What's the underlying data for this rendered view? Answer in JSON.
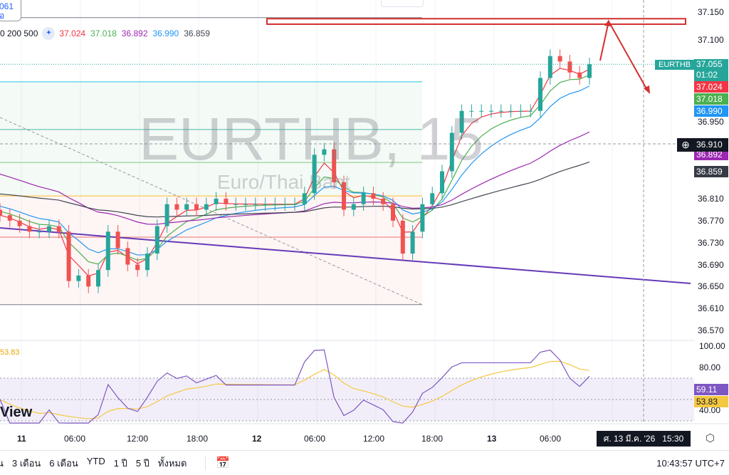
{
  "symbol_box": {
    "value": "061",
    "sub": "อ"
  },
  "legend": {
    "periods": "0 200 500",
    "values": [
      {
        "v": "37.024",
        "c": "#f23645"
      },
      {
        "v": "37.018",
        "c": "#4caf50"
      },
      {
        "v": "36.892",
        "c": "#9c27b0"
      },
      {
        "v": "36.990",
        "c": "#2196f3"
      },
      {
        "v": "36.859",
        "c": "#434651"
      }
    ]
  },
  "watermark": {
    "title": "EURTHB, 15",
    "subtitle": "Euro/Thai Baht"
  },
  "logo_text": "View",
  "price_labels": {
    "symbol": "EURTHB",
    "last": "37.055",
    "countdown": "01:02",
    "ema1": "37.024",
    "ema2": "37.018",
    "ema3": "36.990",
    "crosshair": "36.910",
    "ema4": "36.892",
    "ema5": "36.859"
  },
  "rsi_labels": {
    "rsi": "59.11",
    "ma": "53.83",
    "left_value": "53.83"
  },
  "time_axis": {
    "labels": [
      "11",
      "06:00",
      "12:00",
      "18:00",
      "12",
      "06:00",
      "12:00",
      "18:00",
      "13",
      "06:00"
    ],
    "crosshair": "ศ. 13 มี.ค. '26   15:30"
  },
  "bottom_bar": {
    "ranges": [
      "น",
      "3 เดือน",
      "6 เดือน",
      "YTD",
      "1 ปี",
      "5 ปี",
      "ทั้งหมด"
    ],
    "clock": "10:43:57 UTC+7"
  },
  "colors": {
    "up": "#26a69a",
    "down": "#ef5350",
    "rsi": "#7e57c2",
    "rsi_ma": "#f5c842",
    "annotation": "#d32f2f"
  },
  "chart_data": {
    "type": "candlestick",
    "interval": "15",
    "price_ticks": [
      "37.150",
      "37.100",
      "36.950",
      "36.810",
      "36.770",
      "36.730",
      "36.690",
      "36.650",
      "36.610",
      "36.570"
    ],
    "ylim": [
      36.57,
      37.15
    ],
    "rsi_ticks": [
      "100.00",
      "80.00",
      "40.00"
    ],
    "rsi_ylim": [
      40,
      100
    ],
    "hourly_closes": [
      36.78,
      36.77,
      36.76,
      36.75,
      36.75,
      36.76,
      36.75,
      36.66,
      36.67,
      36.65,
      36.68,
      36.75,
      36.72,
      36.69,
      36.68,
      36.71,
      36.76,
      36.8,
      36.79,
      36.8,
      36.79,
      36.8,
      36.81,
      36.8,
      36.8,
      36.8,
      36.8,
      36.8,
      36.8,
      36.8,
      36.8,
      36.82,
      36.89,
      36.9,
      36.84,
      36.79,
      36.8,
      36.82,
      36.81,
      36.8,
      36.77,
      36.71,
      36.75,
      36.8,
      36.82,
      36.86,
      36.93,
      36.97,
      36.97,
      36.97,
      36.97,
      36.97,
      36.97,
      36.97,
      36.97,
      37.03,
      37.07,
      37.06,
      37.04,
      37.03,
      37.055
    ],
    "levels": [
      {
        "price": 37.14,
        "color": "#787b86"
      },
      {
        "price": 37.023,
        "color": "#26c6da"
      },
      {
        "price": 36.936,
        "color": "#4db6ac"
      },
      {
        "price": 36.876,
        "color": "#81c784"
      },
      {
        "price": 36.815,
        "color": "#fbc02d"
      },
      {
        "price": 36.74,
        "color": "#e57373"
      },
      {
        "price": 36.617,
        "color": "#787b86"
      }
    ],
    "resistance_zone": [
      37.128,
      37.138
    ]
  }
}
